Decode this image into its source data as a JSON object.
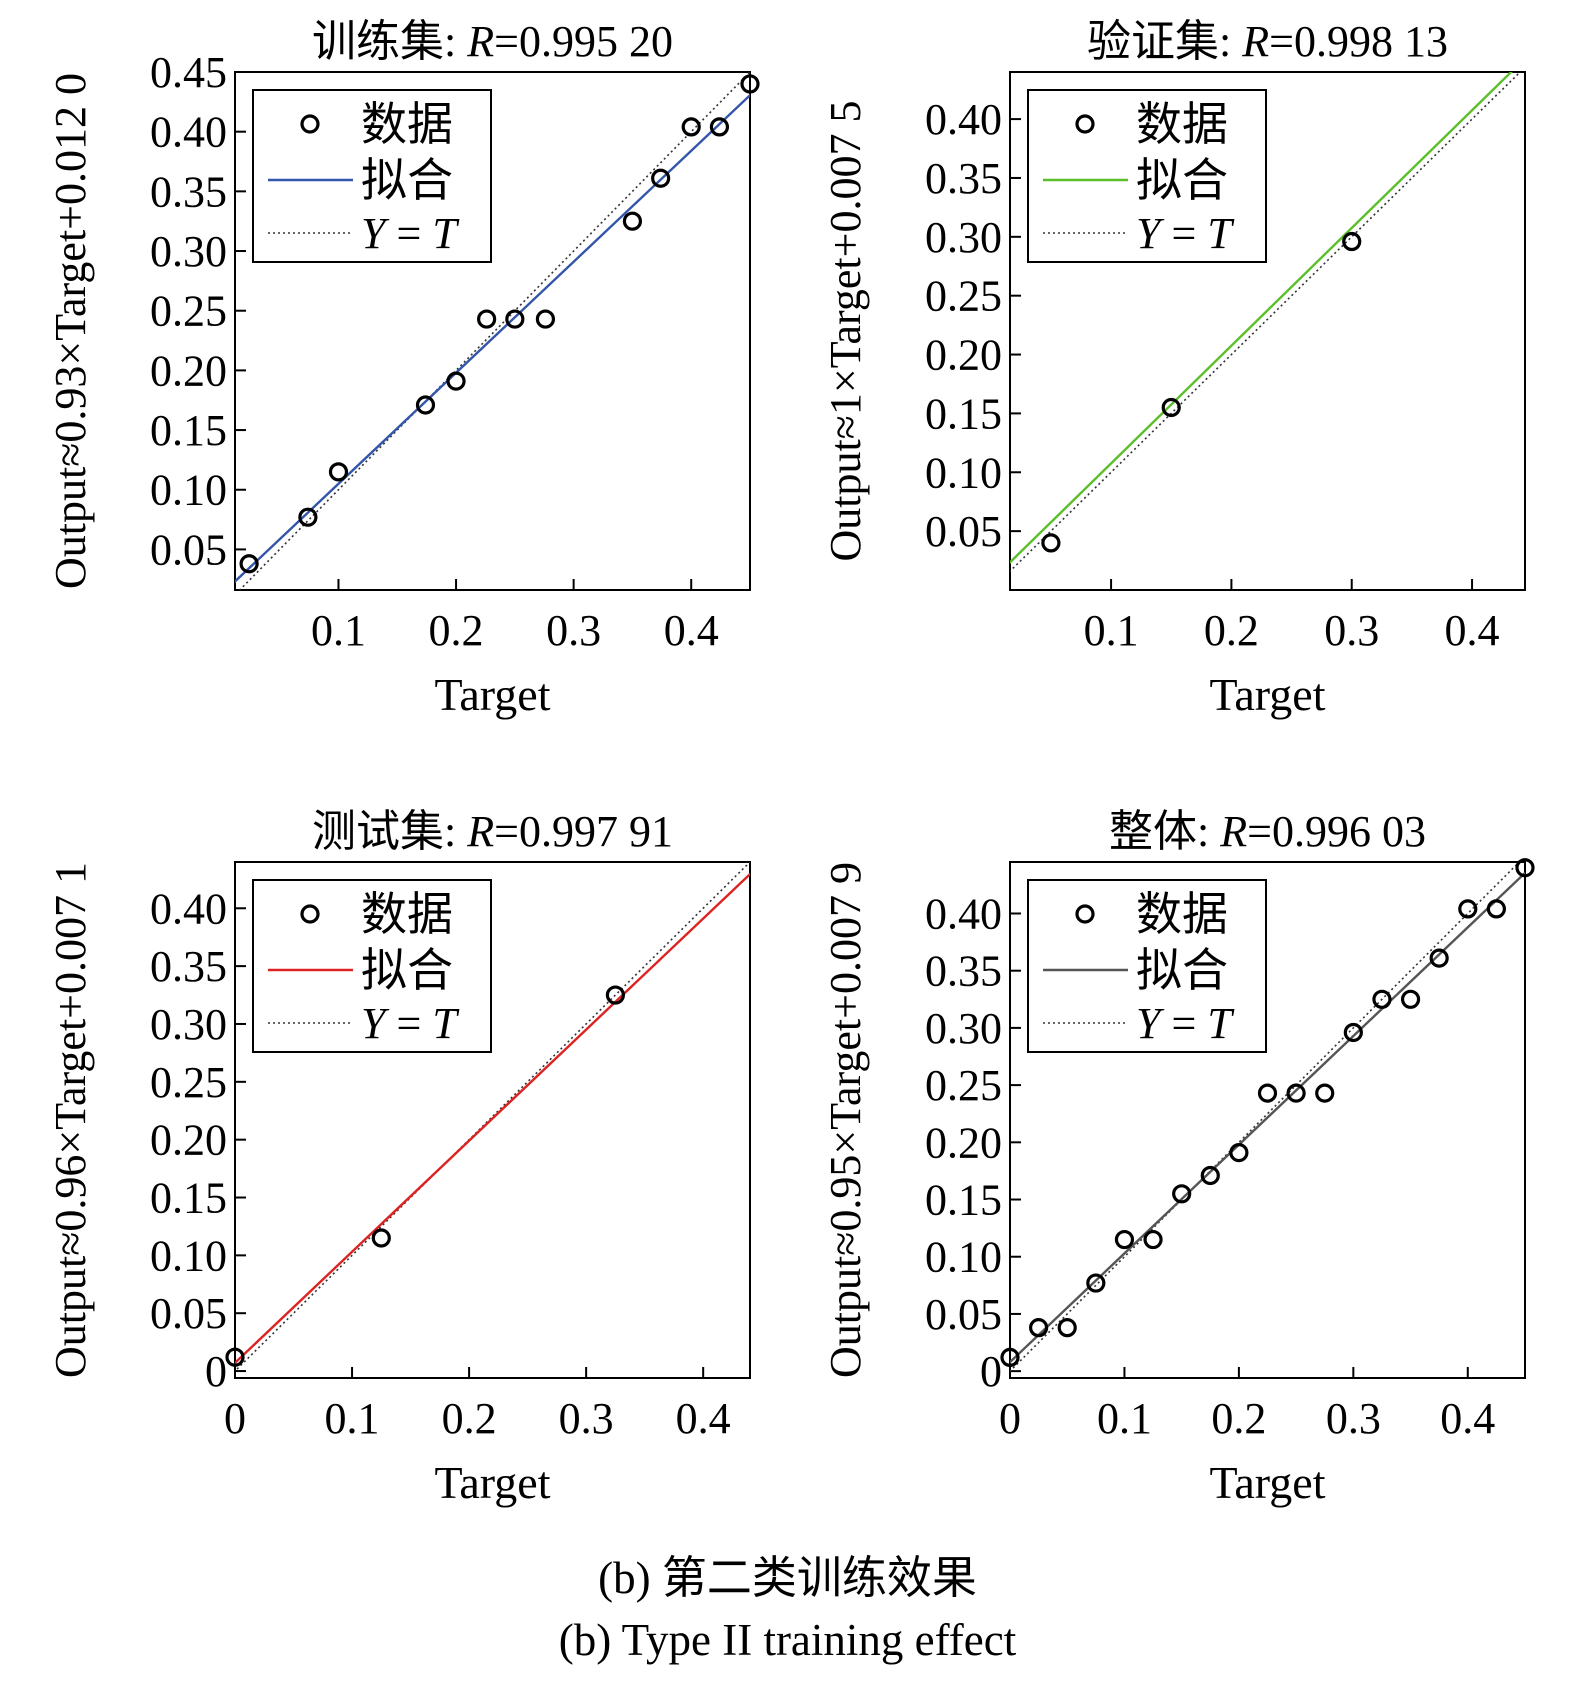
{
  "caption": {
    "cn": "(b) 第二类训练效果",
    "en": "(b) Type II training effect"
  },
  "chart_data": [
    {
      "type": "scatter",
      "title_prefix": "训练集: ",
      "title_r_symbol": "R",
      "title_r_value": "=0.995 20",
      "xlabel": "Target",
      "ylabel": "Output≈0.93×Target+0.012 0",
      "xlim": [
        0.012,
        0.45
      ],
      "ylim": [
        0.016,
        0.45
      ],
      "xticks": [
        "0.1",
        "0.2",
        "0.3",
        "0.4"
      ],
      "yticks": [
        "0.05",
        "0.10",
        "0.15",
        "0.20",
        "0.25",
        "0.30",
        "0.35",
        "0.40",
        "0.45"
      ],
      "legend_position": "top-left",
      "legend": {
        "data": "数据",
        "fit": "拟合",
        "yt_y": "Y",
        "yt_eq": " = ",
        "yt_t": "T"
      },
      "fit_color": "#3355aa",
      "fit": {
        "slope": 0.93,
        "intercept": 0.012
      },
      "points": [
        [
          0.024,
          0.038
        ],
        [
          0.074,
          0.077
        ],
        [
          0.1,
          0.115
        ],
        [
          0.174,
          0.171
        ],
        [
          0.2,
          0.191
        ],
        [
          0.226,
          0.243
        ],
        [
          0.25,
          0.243
        ],
        [
          0.276,
          0.243
        ],
        [
          0.35,
          0.325
        ],
        [
          0.374,
          0.361
        ],
        [
          0.4,
          0.404
        ],
        [
          0.424,
          0.404
        ],
        [
          0.45,
          0.44
        ]
      ]
    },
    {
      "type": "scatter",
      "title_prefix": "验证集: ",
      "title_r_symbol": "R",
      "title_r_value": "=0.998 13",
      "xlabel": "Target",
      "ylabel": "Output≈1×Target+0.007 5",
      "xlim": [
        0.016,
        0.444
      ],
      "ylim": [
        0.0,
        0.44
      ],
      "xticks": [
        "0.1",
        "0.2",
        "0.3",
        "0.4"
      ],
      "yticks": [
        "0.05",
        "0.10",
        "0.15",
        "0.20",
        "0.25",
        "0.30",
        "0.35",
        "0.40"
      ],
      "legend_position": "top-left",
      "legend": {
        "data": "数据",
        "fit": "拟合",
        "yt_y": "Y",
        "yt_eq": " = ",
        "yt_t": "T"
      },
      "fit_color": "#5cbf2a",
      "fit": {
        "slope": 1.0,
        "intercept": 0.0075
      },
      "points": [
        [
          0.05,
          0.04
        ],
        [
          0.15,
          0.155
        ],
        [
          0.3,
          0.296
        ]
      ]
    },
    {
      "type": "scatter",
      "title_prefix": "测试集: ",
      "title_r_symbol": "R",
      "title_r_value": "=0.997 91",
      "xlabel": "Target",
      "ylabel": "Output≈0.96×Target+0.007 1",
      "xlim": [
        0.0,
        0.44
      ],
      "ylim": [
        -0.006,
        0.44
      ],
      "xticks": [
        "0",
        "0.1",
        "0.2",
        "0.3",
        "0.4"
      ],
      "yticks": [
        "0",
        "0.05",
        "0.10",
        "0.15",
        "0.20",
        "0.25",
        "0.30",
        "0.35",
        "0.40"
      ],
      "legend_position": "top-left",
      "legend": {
        "data": "数据",
        "fit": "拟合",
        "yt_y": "Y",
        "yt_eq": " = ",
        "yt_t": "T"
      },
      "fit_color": "#dd2222",
      "fit": {
        "slope": 0.96,
        "intercept": 0.0071
      },
      "points": [
        [
          0.0,
          0.012
        ],
        [
          0.125,
          0.115
        ],
        [
          0.325,
          0.325
        ]
      ]
    },
    {
      "type": "scatter",
      "title_prefix": "整体: ",
      "title_r_symbol": "R",
      "title_r_value": "=0.996 03",
      "xlabel": "Target",
      "ylabel": "Output≈0.95×Target+0.007 9",
      "xlim": [
        0.0,
        0.45
      ],
      "ylim": [
        -0.006,
        0.445
      ],
      "xticks": [
        "0",
        "0.1",
        "0.2",
        "0.3",
        "0.4"
      ],
      "yticks": [
        "0",
        "0.05",
        "0.10",
        "0.15",
        "0.20",
        "0.25",
        "0.30",
        "0.35",
        "0.40"
      ],
      "legend_position": "top-left",
      "legend": {
        "data": "数据",
        "fit": "拟合",
        "yt_y": "Y",
        "yt_eq": " = ",
        "yt_t": "T"
      },
      "fit_color": "#555555",
      "fit": {
        "slope": 0.95,
        "intercept": 0.0079
      },
      "points": [
        [
          0.0,
          0.012
        ],
        [
          0.025,
          0.038
        ],
        [
          0.05,
          0.038
        ],
        [
          0.075,
          0.077
        ],
        [
          0.1,
          0.115
        ],
        [
          0.125,
          0.115
        ],
        [
          0.15,
          0.155
        ],
        [
          0.175,
          0.171
        ],
        [
          0.2,
          0.191
        ],
        [
          0.225,
          0.243
        ],
        [
          0.25,
          0.243
        ],
        [
          0.275,
          0.243
        ],
        [
          0.3,
          0.296
        ],
        [
          0.325,
          0.325
        ],
        [
          0.35,
          0.325
        ],
        [
          0.375,
          0.361
        ],
        [
          0.4,
          0.404
        ],
        [
          0.425,
          0.404
        ],
        [
          0.45,
          0.44
        ]
      ]
    }
  ]
}
